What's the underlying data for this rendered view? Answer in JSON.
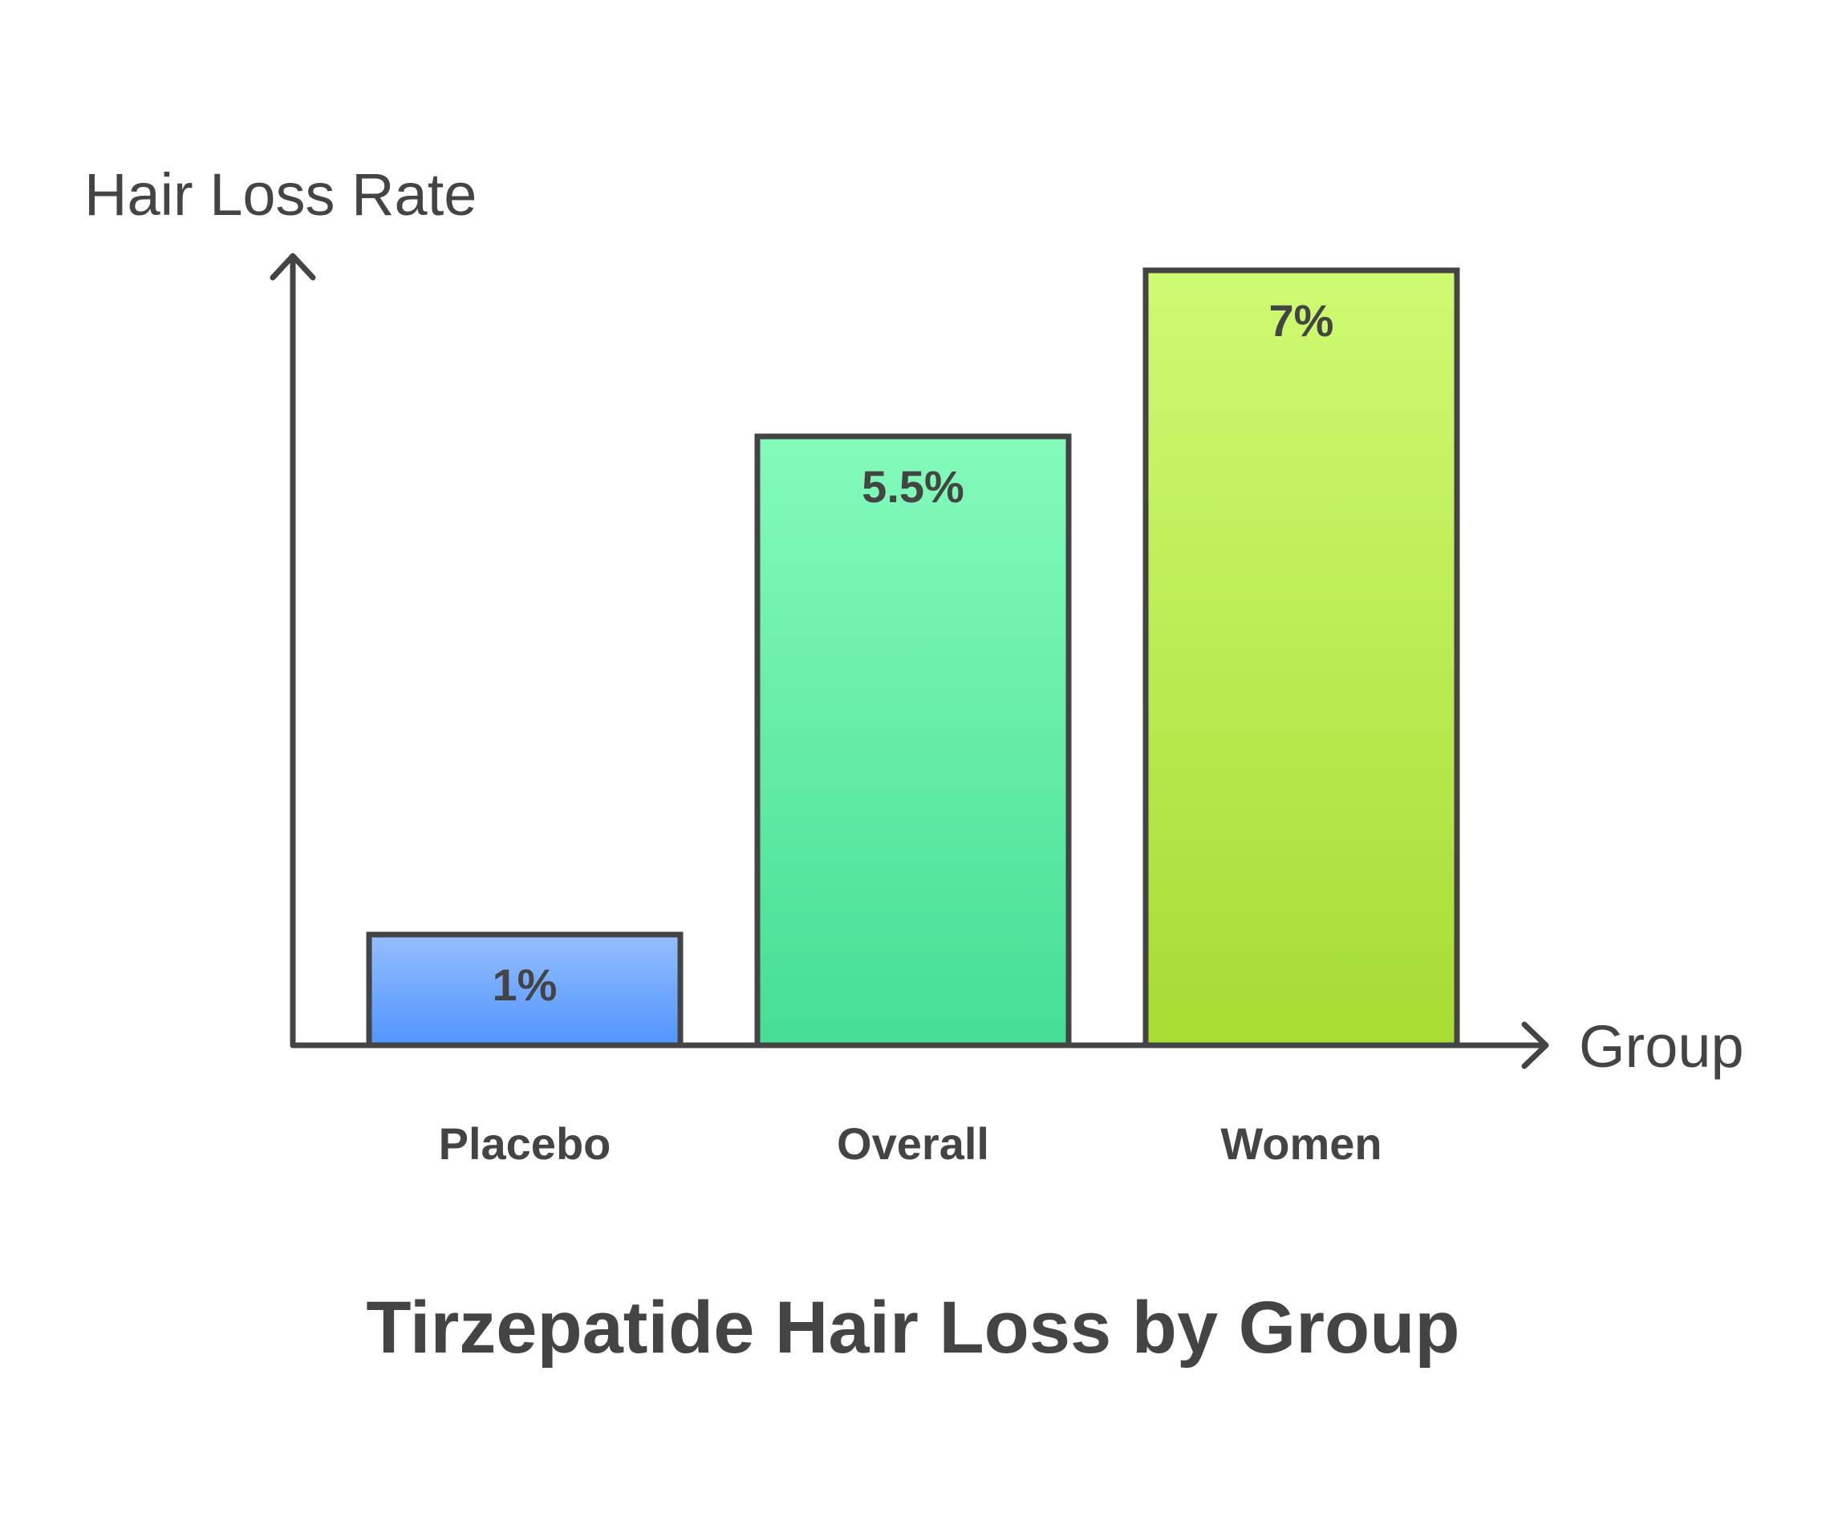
{
  "chart_data": {
    "type": "bar",
    "title": "Tirzepatide Hair Loss by Group",
    "ylabel": "Hair Loss Rate",
    "xlabel": "Group",
    "categories": [
      "Placebo",
      "Overall",
      "Women"
    ],
    "values": [
      1,
      5.5,
      7
    ],
    "value_labels": [
      "1%",
      "5.5%",
      "7%"
    ],
    "unit": "%",
    "ylim": [
      0,
      7
    ],
    "grid": false,
    "legend": "none",
    "colors": [
      {
        "top": "#94beff",
        "bottom": "#5195ff"
      },
      {
        "top": "#84fbba",
        "bottom": "#45de94"
      },
      {
        "top": "#cffa72",
        "bottom": "#a6dc33"
      }
    ],
    "outline_color": "#444444"
  }
}
